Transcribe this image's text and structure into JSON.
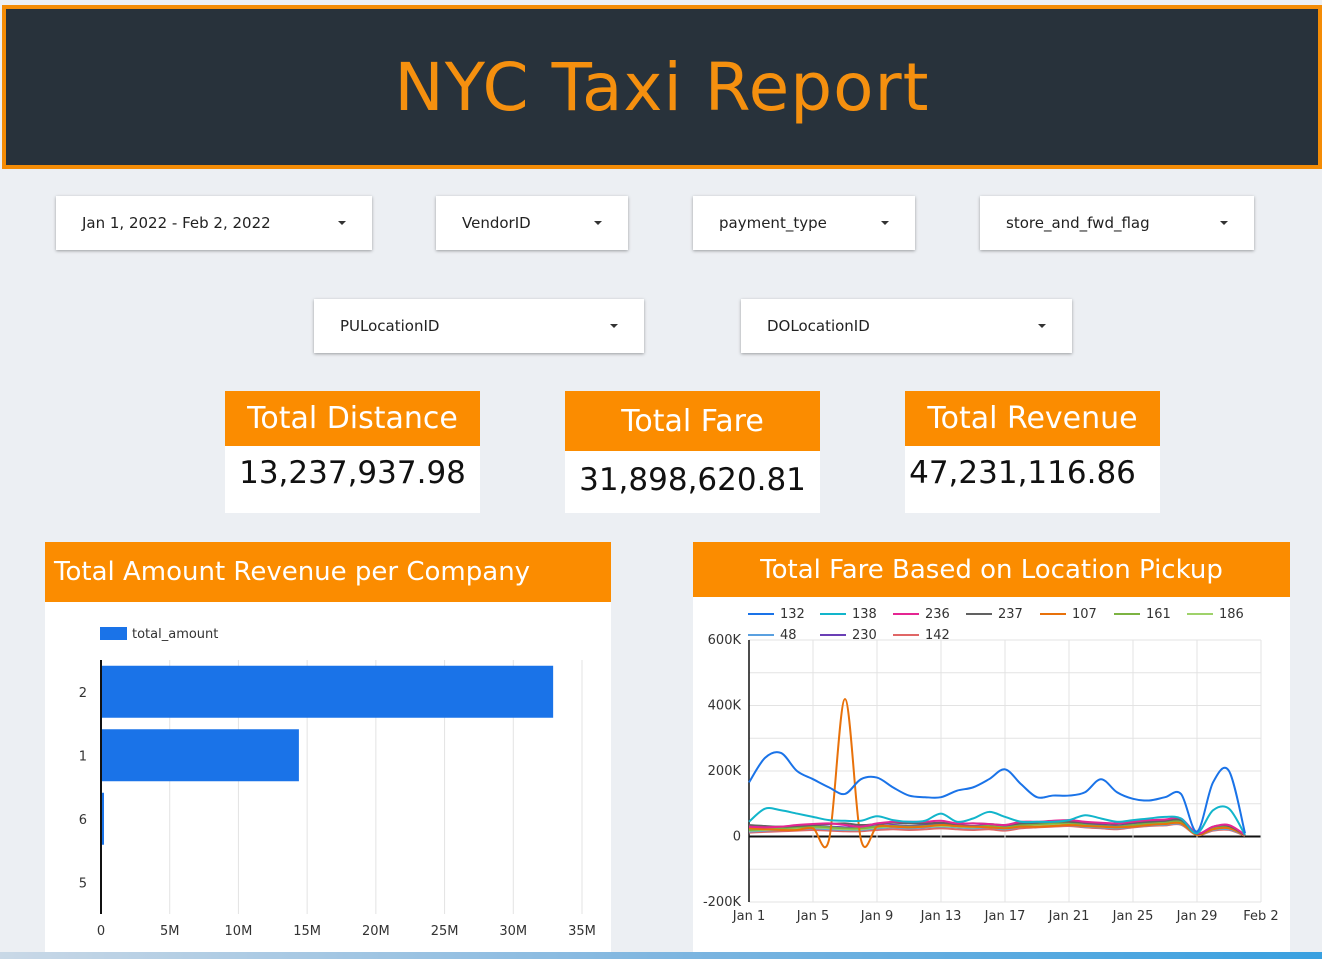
{
  "header": {
    "title": "NYC Taxi Report"
  },
  "filters": {
    "date_range": "Jan 1, 2022 - Feb 2, 2022",
    "vendor": "VendorID",
    "payment": "payment_type",
    "store_flag": "store_and_fwd_flag",
    "pu_location": "PULocationID",
    "do_location": "DOLocationID"
  },
  "kpis": {
    "distance_label": "Total Distance",
    "distance_value": "13,237,937.98",
    "fare_label": "Total Fare",
    "fare_value": "31,898,620.81",
    "revenue_label": "Total Revenue",
    "revenue_value": "47,231,116.86"
  },
  "colors": {
    "accent": "#fb8c00",
    "header_bg": "#28323b",
    "bar": "#1a73e8"
  },
  "panels": {
    "bar_title": "Total Amount Revenue per Company",
    "line_title": "Total Fare Based on Location Pickup"
  },
  "chart_data": [
    {
      "type": "bar",
      "orientation": "horizontal",
      "title": "Total Amount Revenue per Company",
      "legend": "top-left",
      "series": [
        {
          "name": "total_amount",
          "color": "#1a73e8"
        }
      ],
      "categories": [
        "2",
        "1",
        "6",
        "5"
      ],
      "values": [
        32900000,
        14400000,
        200000,
        0
      ],
      "xlim": [
        0,
        35000000
      ],
      "xticks": [
        "0",
        "5M",
        "10M",
        "15M",
        "20M",
        "25M",
        "30M",
        "35M"
      ],
      "grid": true
    },
    {
      "type": "line",
      "title": "Total Fare Based on Location Pickup",
      "legend": "top",
      "x": [
        "Jan 1",
        "Jan 2",
        "Jan 3",
        "Jan 4",
        "Jan 5",
        "Jan 6",
        "Jan 7",
        "Jan 8",
        "Jan 9",
        "Jan 10",
        "Jan 11",
        "Jan 12",
        "Jan 13",
        "Jan 14",
        "Jan 15",
        "Jan 16",
        "Jan 17",
        "Jan 18",
        "Jan 19",
        "Jan 20",
        "Jan 21",
        "Jan 22",
        "Jan 23",
        "Jan 24",
        "Jan 25",
        "Jan 26",
        "Jan 27",
        "Jan 28",
        "Jan 29",
        "Jan 30",
        "Jan 31",
        "Feb 1"
      ],
      "xticks": [
        "Jan 1",
        "Jan 5",
        "Jan 9",
        "Jan 13",
        "Jan 17",
        "Jan 21",
        "Jan 25",
        "Jan 29",
        "Feb 2"
      ],
      "ylim": [
        -200000,
        600000
      ],
      "yticks": [
        "-200K",
        "0",
        "200K",
        "400K",
        "600K"
      ],
      "grid": true,
      "series": [
        {
          "name": "132",
          "color": "#1a73e8",
          "values": [
            165000,
            240000,
            255000,
            200000,
            175000,
            150000,
            130000,
            175000,
            180000,
            150000,
            125000,
            120000,
            120000,
            140000,
            150000,
            175000,
            205000,
            160000,
            120000,
            125000,
            125000,
            135000,
            175000,
            135000,
            115000,
            110000,
            120000,
            130000,
            15000,
            165000,
            200000,
            10000
          ]
        },
        {
          "name": "138",
          "color": "#12b5cb",
          "values": [
            45000,
            85000,
            80000,
            70000,
            60000,
            50000,
            48000,
            48000,
            62000,
            50000,
            45000,
            48000,
            70000,
            45000,
            55000,
            75000,
            60000,
            45000,
            45000,
            45000,
            50000,
            65000,
            55000,
            45000,
            50000,
            55000,
            60000,
            55000,
            10000,
            80000,
            85000,
            5000
          ]
        },
        {
          "name": "236",
          "color": "#e52592",
          "values": [
            30000,
            28000,
            30000,
            35000,
            38000,
            40000,
            35000,
            30000,
            40000,
            45000,
            45000,
            45000,
            48000,
            40000,
            40000,
            38000,
            35000,
            45000,
            45000,
            48000,
            50000,
            45000,
            42000,
            40000,
            45000,
            50000,
            52000,
            55000,
            10000,
            30000,
            35000,
            5000
          ]
        },
        {
          "name": "237",
          "color": "#616161",
          "values": [
            35000,
            32000,
            30000,
            32000,
            35000,
            38000,
            40000,
            35000,
            38000,
            42000,
            40000,
            40000,
            42000,
            38000,
            40000,
            38000,
            35000,
            40000,
            42000,
            45000,
            45000,
            42000,
            40000,
            38000,
            42000,
            45000,
            48000,
            50000,
            8000,
            30000,
            32000,
            4000
          ]
        },
        {
          "name": "107",
          "color": "#e8710a",
          "values": [
            25000,
            22000,
            20000,
            20000,
            25000,
            -10000,
            420000,
            -10000,
            30000,
            30000,
            28000,
            30000,
            35000,
            32000,
            30000,
            28000,
            25000,
            30000,
            30000,
            32000,
            35000,
            32000,
            30000,
            28000,
            30000,
            35000,
            38000,
            40000,
            5000,
            22000,
            25000,
            3000
          ]
        },
        {
          "name": "161",
          "color": "#7cb342",
          "values": [
            20000,
            22000,
            25000,
            28000,
            30000,
            28000,
            25000,
            25000,
            30000,
            32000,
            30000,
            32000,
            35000,
            32000,
            30000,
            32000,
            28000,
            35000,
            38000,
            40000,
            42000,
            35000,
            32000,
            30000,
            35000,
            40000,
            42000,
            45000,
            6000,
            25000,
            28000,
            3000
          ]
        },
        {
          "name": "186",
          "color": "#9fd26b",
          "values": [
            18000,
            20000,
            22000,
            25000,
            28000,
            25000,
            22000,
            22000,
            28000,
            30000,
            28000,
            30000,
            32000,
            30000,
            28000,
            30000,
            25000,
            32000,
            35000,
            36000,
            38000,
            32000,
            30000,
            28000,
            32000,
            36000,
            38000,
            40000,
            5000,
            22000,
            25000,
            3000
          ]
        },
        {
          "name": "48",
          "color": "#5aa0e0",
          "values": [
            15000,
            18000,
            20000,
            22000,
            25000,
            22000,
            20000,
            20000,
            25000,
            28000,
            25000,
            28000,
            30000,
            28000,
            25000,
            28000,
            22000,
            30000,
            32000,
            34000,
            35000,
            30000,
            28000,
            25000,
            30000,
            34000,
            36000,
            38000,
            5000,
            20000,
            22000,
            3000
          ]
        },
        {
          "name": "230",
          "color": "#6a3fb5",
          "values": [
            22000,
            25000,
            28000,
            30000,
            32000,
            30000,
            28000,
            28000,
            32000,
            35000,
            32000,
            35000,
            38000,
            35000,
            32000,
            35000,
            30000,
            38000,
            40000,
            42000,
            44000,
            38000,
            35000,
            32000,
            38000,
            42000,
            44000,
            46000,
            6000,
            26000,
            28000,
            3000
          ]
        },
        {
          "name": "142",
          "color": "#e06666",
          "values": [
            12000,
            14000,
            16000,
            18000,
            20000,
            18000,
            16000,
            16000,
            20000,
            22000,
            20000,
            22000,
            25000,
            22000,
            20000,
            22000,
            18000,
            25000,
            28000,
            30000,
            32000,
            28000,
            25000,
            22000,
            28000,
            32000,
            34000,
            36000,
            4000,
            18000,
            20000,
            2000
          ]
        }
      ]
    }
  ]
}
